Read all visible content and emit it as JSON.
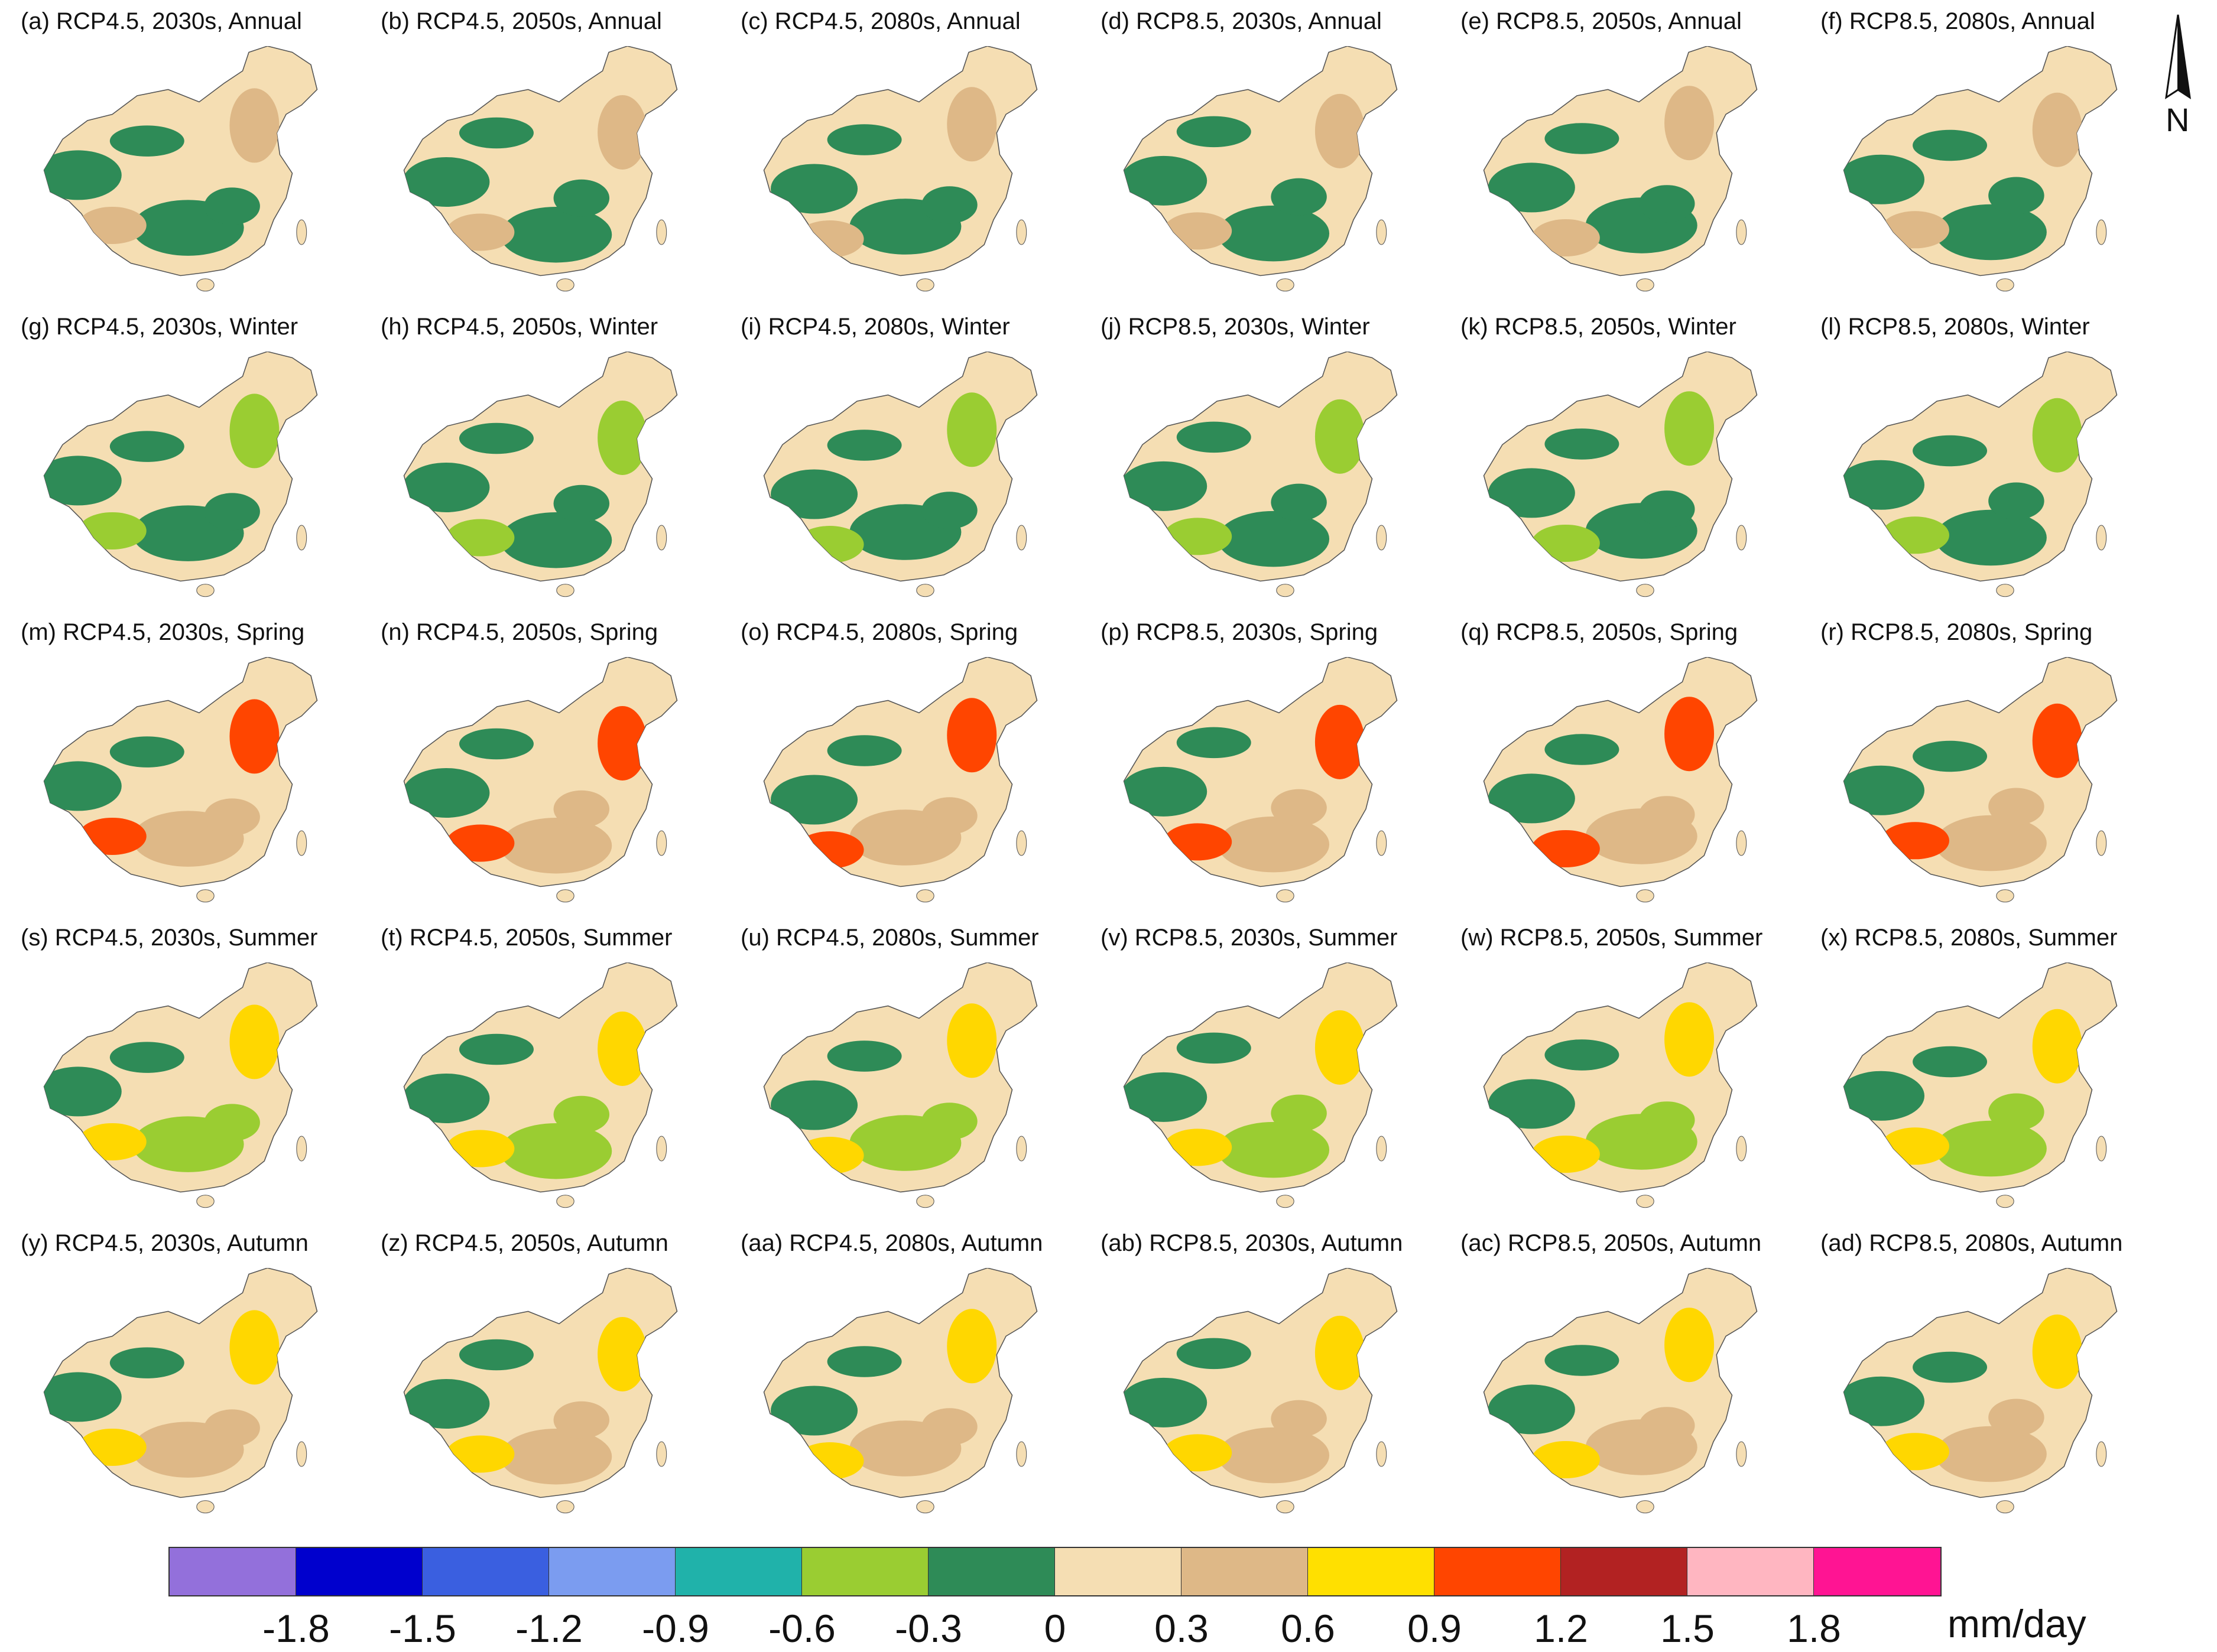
{
  "figure": {
    "north_label": "N",
    "unit": "mm/day",
    "panels": [
      {
        "title": "(a) RCP4.5, 2030s, Annual",
        "class": "3"
      },
      {
        "title": "(b) RCP4.5, 2050s, Annual",
        "class": "3"
      },
      {
        "title": "(c) RCP4.5, 2080s, Annual",
        "class": "3"
      },
      {
        "title": "(d) RCP8.5, 2030s, Annual",
        "class": "3"
      },
      {
        "title": "(e) RCP8.5, 2050s, Annual",
        "class": "3"
      },
      {
        "title": "(f) RCP8.5, 2080s, Annual",
        "class": "3"
      },
      {
        "title": "(g) RCP4.5, 2030s, Winter",
        "class": "3"
      },
      {
        "title": "(h) RCP4.5, 2050s, Winter",
        "class": "3"
      },
      {
        "title": "(i) RCP4.5, 2080s, Winter",
        "class": "3"
      },
      {
        "title": "(j) RCP8.5, 2030s, Winter",
        "class": "3"
      },
      {
        "title": "(k) RCP8.5, 2050s, Winter",
        "class": "3"
      },
      {
        "title": "(l) RCP8.5, 2080s, Winter",
        "class": "3"
      },
      {
        "title": "(m) RCP4.5, 2030s, Spring",
        "class": "3"
      },
      {
        "title": "(n) RCP4.5, 2050s, Spring",
        "class": "3"
      },
      {
        "title": "(o) RCP4.5, 2080s, Spring",
        "class": "3"
      },
      {
        "title": "(p) RCP8.5, 2030s, Spring",
        "class": "3"
      },
      {
        "title": "(q) RCP8.5, 2050s, Spring",
        "class": "3"
      },
      {
        "title": "(r) RCP8.5, 2080s, Spring",
        "class": "3"
      },
      {
        "title": "(s) RCP4.5, 2030s, Summer",
        "class": "3"
      },
      {
        "title": "(t) RCP4.5, 2050s, Summer",
        "class": "3"
      },
      {
        "title": "(u) RCP4.5, 2080s, Summer",
        "class": "3"
      },
      {
        "title": "(v) RCP8.5, 2030s, Summer",
        "class": "3"
      },
      {
        "title": "(w) RCP8.5, 2050s, Summer",
        "class": "3"
      },
      {
        "title": "(x) RCP8.5, 2080s, Summer",
        "class": "3"
      },
      {
        "title": "(y) RCP4.5, 2030s, Autumn",
        "class": "3"
      },
      {
        "title": "(z) RCP4.5, 2050s, Autumn",
        "class": "3"
      },
      {
        "title": "(aa) RCP4.5, 2080s, Autumn",
        "class": "3"
      },
      {
        "title": "(ab) RCP8.5, 2030s, Autumn",
        "class": "3"
      },
      {
        "title": "(ac) RCP8.5, 2050s, Autumn",
        "class": "3"
      },
      {
        "title": "(ad) RCP8.5, 2080s, Autumn",
        "class": "3"
      }
    ],
    "patches": {
      "annual": [
        "#2e8b57",
        "#2e8b57",
        "#deb887"
      ],
      "winter": [
        "#2e8b57",
        "#2e8b57",
        "#9acd32"
      ],
      "spring": [
        "#2e8b57",
        "#deb887",
        "#ff4500"
      ],
      "summer": [
        "#2e8b57",
        "#9acd32",
        "#ffd700"
      ],
      "autumn": [
        "#2e8b57",
        "#deb887",
        "#ffd700"
      ]
    },
    "land_color": "#f5deb3",
    "legend": {
      "colors": [
        "#9370db",
        "#0000cd",
        "#3a5fe0",
        "#7b9cf0",
        "#20b2aa",
        "#9acd32",
        "#2e8b57",
        "#f5deb3",
        "#deb887",
        "#ffe000",
        "#ff4500",
        "#b22222",
        "#ffb6c1",
        "#ff1493"
      ],
      "ticks": [
        "-1.8",
        "-1.5",
        "-1.2",
        "-0.9",
        "-0.6",
        "-0.3",
        "0",
        "0.3",
        "0.6",
        "0.9",
        "1.2",
        "1.5",
        "1.8"
      ]
    }
  }
}
